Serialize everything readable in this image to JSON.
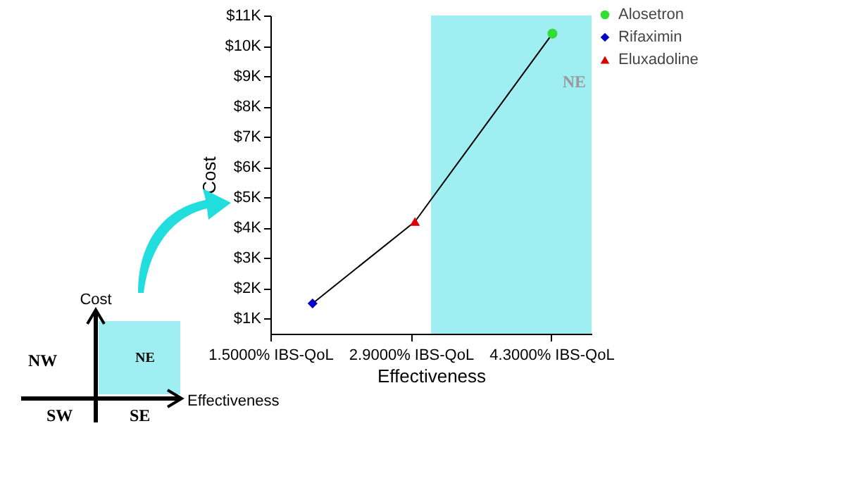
{
  "chart_data": {
    "type": "scatter",
    "xlabel": "Effectiveness",
    "ylabel": "Cost",
    "xlim": [
      1.5,
      4.7
    ],
    "ylim": [
      500,
      11000
    ],
    "xticks": [
      {
        "value": 1.5,
        "label": "1.5000% IBS-QoL"
      },
      {
        "value": 2.9,
        "label": "2.9000% IBS-QoL"
      },
      {
        "value": 4.3,
        "label": "4.3000% IBS-QoL"
      }
    ],
    "yticks": [
      {
        "value": 1000,
        "label": "$1K"
      },
      {
        "value": 2000,
        "label": "$2K"
      },
      {
        "value": 3000,
        "label": "$3K"
      },
      {
        "value": 4000,
        "label": "$4K"
      },
      {
        "value": 5000,
        "label": "$5K"
      },
      {
        "value": 6000,
        "label": "$6K"
      },
      {
        "value": 7000,
        "label": "$7K"
      },
      {
        "value": 8000,
        "label": "$8K"
      },
      {
        "value": 9000,
        "label": "$9K"
      },
      {
        "value": 10000,
        "label": "$10K"
      },
      {
        "value": 11000,
        "label": "$11K"
      }
    ],
    "series": [
      {
        "type": "line",
        "color": "#000000",
        "marker": "none",
        "x": [
          1.92,
          2.94,
          4.31
        ],
        "values": [
          1500,
          4200,
          10400
        ]
      },
      {
        "name": "Alosetron",
        "color": "#33dd33",
        "marker": "circle",
        "x": [
          4.31
        ],
        "values": [
          10400
        ]
      },
      {
        "name": "Rifaximin",
        "color": "#0000cc",
        "marker": "diamond",
        "x": [
          1.92
        ],
        "values": [
          1500
        ]
      },
      {
        "name": "Eluxadoline",
        "color": "#dd0000",
        "marker": "triangle",
        "x": [
          2.94
        ],
        "values": [
          4200
        ]
      }
    ],
    "bands": [
      {
        "axis": "x",
        "from": 3.1,
        "to": 4.7,
        "label": "NE",
        "color": "#9feff2"
      }
    ],
    "legend": "top right",
    "annotations": [
      "Cost",
      "NW",
      "NE",
      "SW",
      "SE",
      "Effectiveness"
    ]
  }
}
